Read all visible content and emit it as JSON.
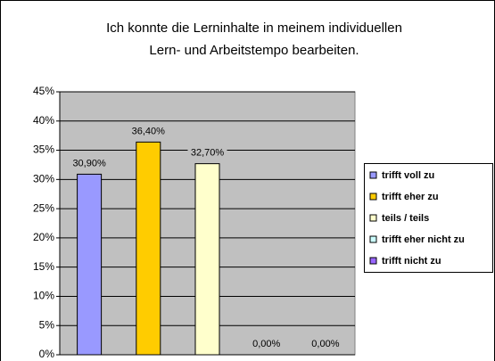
{
  "chart_data": {
    "type": "bar",
    "title": [
      "Ich konnte die Lerninhalte in meinem individuellen",
      "Lern- und Arbeitstempo bearbeiten."
    ],
    "categories": [
      null
    ],
    "series": [
      {
        "name": "trifft voll zu",
        "color": "#9999ff",
        "values": [
          30.9
        ],
        "value_labels": [
          "30,90%"
        ]
      },
      {
        "name": "trifft eher zu",
        "color": "#ffcc00",
        "values": [
          36.4
        ],
        "value_labels": [
          "36,40%"
        ]
      },
      {
        "name": "teils / teils",
        "color": "#ffffcc",
        "values": [
          32.7
        ],
        "value_labels": [
          "32,70%"
        ]
      },
      {
        "name": "trifft eher nicht zu",
        "color": "#ccffff",
        "values": [
          0
        ],
        "value_labels": [
          "0,00%"
        ]
      },
      {
        "name": "trifft nicht zu",
        "color": "#9966ff",
        "values": [
          0
        ],
        "value_labels": [
          "0,00%"
        ]
      }
    ],
    "ylim": [
      0,
      45
    ],
    "yticks": [
      {
        "value": 0,
        "label": "0%"
      },
      {
        "value": 5,
        "label": "5%"
      },
      {
        "value": 10,
        "label": "10%"
      },
      {
        "value": 15,
        "label": "15%"
      },
      {
        "value": 20,
        "label": "20%"
      },
      {
        "value": 25,
        "label": "25%"
      },
      {
        "value": 30,
        "label": "30%"
      },
      {
        "value": 35,
        "label": "35%"
      },
      {
        "value": 40,
        "label": "40%"
      },
      {
        "value": 45,
        "label": "45%"
      }
    ],
    "grid": true,
    "legend": "right"
  }
}
